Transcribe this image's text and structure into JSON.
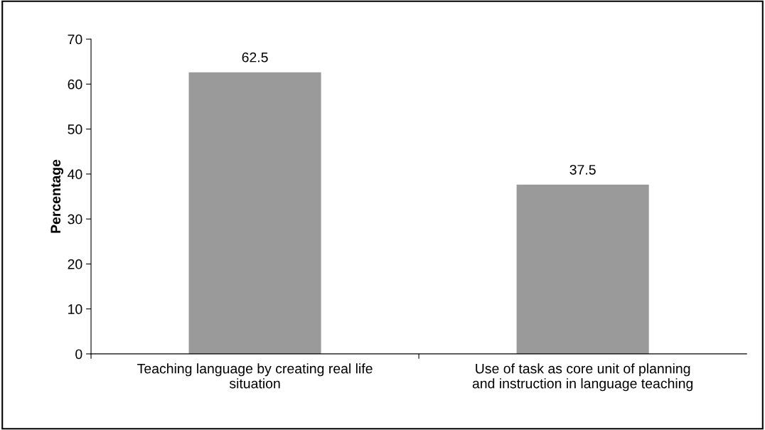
{
  "chart_data": {
    "type": "bar",
    "ylabel": "Percentage",
    "categories": [
      "Teaching language by creating real life situation",
      "Use of task as core unit of planning and instruction in language teaching"
    ],
    "values": [
      62.5,
      37.5
    ],
    "color": "#9a9a9a",
    "ylim": [
      0,
      70
    ],
    "yticks": [
      0,
      10,
      20,
      30,
      40,
      50,
      60,
      70
    ],
    "grid": false,
    "data_labels": true
  }
}
